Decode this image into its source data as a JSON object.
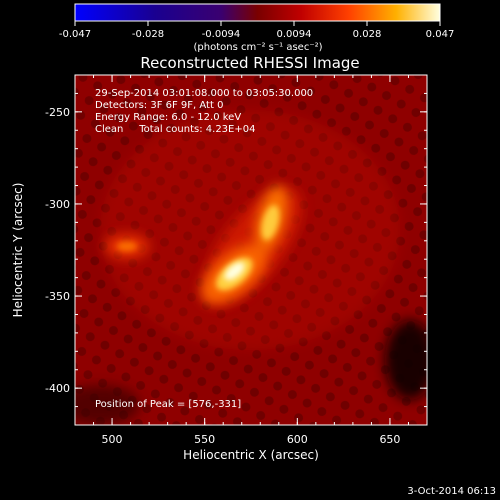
{
  "colorbar": {
    "tick_labels": [
      "-0.047",
      "-0.028",
      "-0.0094",
      "0.0094",
      "0.028",
      "0.047"
    ],
    "units_label": "(photons cm⁻² s⁻¹ asec⁻²)",
    "range": [
      -0.047,
      0.047
    ]
  },
  "chart_data": {
    "type": "heatmap",
    "title": "Reconstructed RHESSI Image",
    "xlabel": "Heliocentric X (arcsec)",
    "ylabel": "Heliocentric Y (arcsec)",
    "xlim": [
      480,
      670
    ],
    "ylim": [
      -420,
      -230
    ],
    "x_ticks": [
      500,
      550,
      600,
      650
    ],
    "y_ticks": [
      -250,
      -300,
      -350,
      -400
    ],
    "annotations": [
      "29-Sep-2014 03:01:08.000 to 03:05:30.000",
      "Detectors: 3F 6F 9F, Att 0",
      "Energy Range: 6.0 - 12.0 keV",
      "Clean     Total counts: 4.23E+04"
    ],
    "peak_label": "Position of Peak = [576,-331]",
    "peak": [
      576,
      -331
    ],
    "sources": [
      {
        "x": 566,
        "y": -338,
        "value": 0.047
      },
      {
        "x": 586,
        "y": -308,
        "value": 0.035
      },
      {
        "x": 508,
        "y": -323,
        "value": 0.02
      }
    ]
  },
  "footer_timestamp": "3-Oct-2014 06:13"
}
